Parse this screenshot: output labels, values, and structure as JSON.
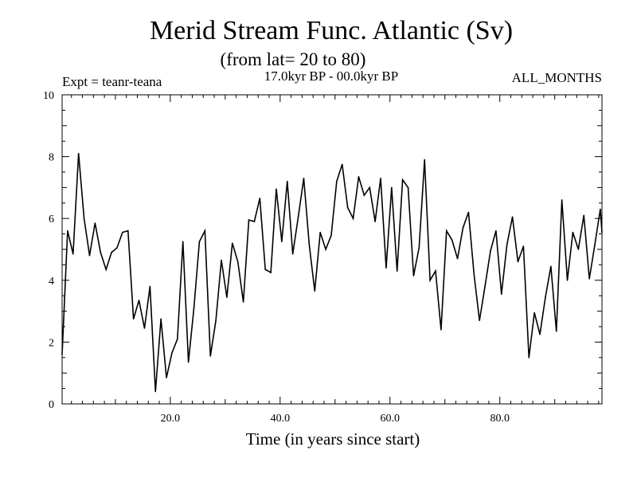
{
  "chart_data": {
    "type": "line",
    "title": "Merid Stream Func. Atlantic (Sv)",
    "subtitle": "(from lat= 20 to 80)",
    "period": "17.0kyr BP - 00.0kyr BP",
    "experiment": "Expt = teanr-teana",
    "season": "ALL_MONTHS",
    "xlabel": "Time (in years since start)",
    "ylabel": "",
    "xlim": [
      0.3,
      98.6
    ],
    "ylim": [
      0,
      10
    ],
    "x_ticks": [
      20,
      40,
      60,
      80
    ],
    "x_tick_labels": [
      "20.0",
      "40.0",
      "60.0",
      "80.0"
    ],
    "y_ticks": [
      0,
      2,
      4,
      6,
      8,
      10
    ],
    "y_tick_labels": [
      "0",
      "2",
      "4",
      "6",
      "8",
      "10"
    ],
    "grid": false,
    "series": [
      {
        "name": "Merid Stream Func. Atlantic",
        "x": [
          0.3,
          1.3,
          2.3,
          3.3,
          4.3,
          5.3,
          6.3,
          7.3,
          8.3,
          9.3,
          10.3,
          11.3,
          12.3,
          13.3,
          14.3,
          15.3,
          16.3,
          17.3,
          18.3,
          19.3,
          20.3,
          21.3,
          22.3,
          23.3,
          24.3,
          25.3,
          26.3,
          27.3,
          28.3,
          29.3,
          30.3,
          31.3,
          32.3,
          33.3,
          34.3,
          35.3,
          36.3,
          37.3,
          38.3,
          39.3,
          40.3,
          41.3,
          42.3,
          43.3,
          44.3,
          45.3,
          46.3,
          47.3,
          48.3,
          49.3,
          50.3,
          51.3,
          52.3,
          53.3,
          54.3,
          55.3,
          56.3,
          57.3,
          58.3,
          59.3,
          60.3,
          61.3,
          62.3,
          63.3,
          64.3,
          65.3,
          66.3,
          67.3,
          68.3,
          69.3,
          70.3,
          71.3,
          72.3,
          73.3,
          74.3,
          75.3,
          76.3,
          77.3,
          78.3,
          79.3,
          80.3,
          81.3,
          82.3,
          83.3,
          84.3,
          85.3,
          86.3,
          87.3,
          88.3,
          89.3,
          90.3,
          91.3,
          92.3,
          93.3,
          94.3,
          95.3,
          96.3,
          97.3,
          98.3,
          98.6
        ],
        "values": [
          1.6,
          5.6,
          4.85,
          8.1,
          6.0,
          4.8,
          5.85,
          4.9,
          4.35,
          4.9,
          5.05,
          5.55,
          5.6,
          2.75,
          3.35,
          2.45,
          3.8,
          0.4,
          2.75,
          0.85,
          1.65,
          2.1,
          5.25,
          1.35,
          3.1,
          5.25,
          5.6,
          1.55,
          2.7,
          4.65,
          3.45,
          5.2,
          4.6,
          3.3,
          5.95,
          5.9,
          6.65,
          4.35,
          4.25,
          6.95,
          5.25,
          7.2,
          4.85,
          6.05,
          7.3,
          5.15,
          3.65,
          5.55,
          5.0,
          5.45,
          7.2,
          7.75,
          6.35,
          6.0,
          7.35,
          6.75,
          7.0,
          5.9,
          7.3,
          4.4,
          7.0,
          4.3,
          7.25,
          7.0,
          4.15,
          5.05,
          7.9,
          4.0,
          4.3,
          2.4,
          5.6,
          5.3,
          4.7,
          5.7,
          6.2,
          4.2,
          2.7,
          3.8,
          4.95,
          5.6,
          3.55,
          5.15,
          6.05,
          4.6,
          5.1,
          1.5,
          2.95,
          2.25,
          3.45,
          4.45,
          2.35,
          6.6,
          4.0,
          5.55,
          5.0,
          6.1,
          4.05,
          5.15,
          6.3,
          5.55
        ]
      }
    ]
  }
}
